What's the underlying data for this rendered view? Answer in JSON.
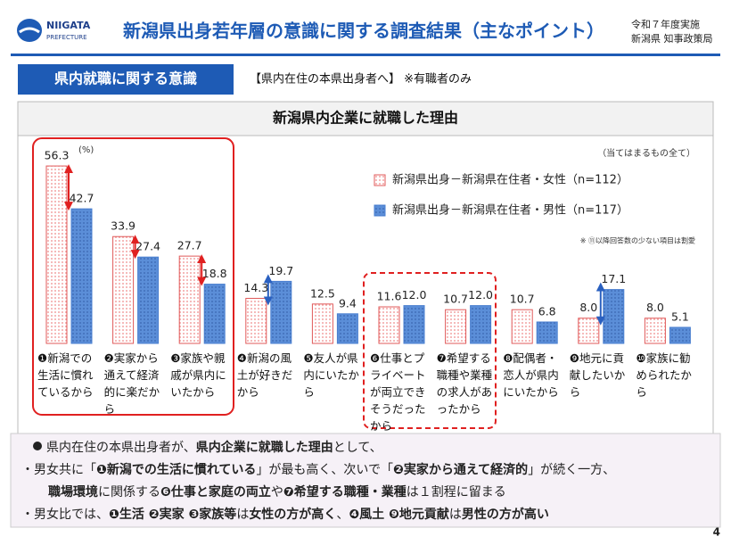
{
  "header": {
    "logo_line1": "NIIGATA",
    "logo_line2": "PREFECTURE",
    "title": "新潟県出身若年層の意識に関する調査結果（主なポイント）",
    "date": "令和７年度実施",
    "dept": "新潟県 知事政策局"
  },
  "section": {
    "label": "県内就職に関する意識",
    "subtitle": "【県内在住の本県出身者へ】 ※有職者のみ"
  },
  "chart_data": {
    "type": "bar",
    "title": "新潟県内企業に就職した理由",
    "unit": "(%)",
    "note": "（当てはまるもの全て）",
    "footnote": "※ ⑪以降回答数の少ない項目は割愛",
    "categories": [
      "❶新潟での生活に慣れているから",
      "❷実家から通えて経済的に楽だから",
      "❸家族や親戚が県内にいたから",
      "❹新潟の風土が好きだから",
      "❺友人が県内にいたから",
      "❻仕事とプライベートが両立できそうだったから",
      "❼希望する職種や業種の求人があったから",
      "❽配偶者・恋人が県内にいたから",
      "❾地元に貢献したいから",
      "❿家族に勧められたから"
    ],
    "series": [
      {
        "name": "新潟県出身－新潟県在住者・女性（n=112）",
        "color": "#e05a5a",
        "values": [
          56.3,
          33.9,
          27.7,
          14.3,
          12.5,
          11.6,
          10.7,
          10.7,
          8.0,
          8.0
        ],
        "value_labels": [
          "56.3",
          "33.9",
          "27.7",
          "14.3",
          "12.5",
          "11.6",
          "10.7",
          "10.7",
          "8.0",
          "8.0"
        ]
      },
      {
        "name": "新潟県出身－新潟県在住者・男性（n=117）",
        "color": "#4a7fd0",
        "values": [
          42.7,
          27.4,
          18.8,
          19.7,
          9.4,
          12.0,
          12.0,
          6.8,
          17.1,
          5.1
        ],
        "value_labels": [
          "42.7",
          "27.4",
          "18.8",
          "19.7",
          "9.4",
          "12.0",
          "12.0",
          "6.8",
          "17.1",
          "5.1"
        ]
      }
    ],
    "ylim": [
      0,
      60
    ]
  },
  "summary": {
    "lines": [
      [
        {
          "text": "県内在住の本県出身者が、"
        },
        {
          "text": "県内企業に就職した理由",
          "bold": true
        },
        {
          "text": "として、"
        }
      ],
      [
        {
          "text": "・男女共に「"
        },
        {
          "text": "❶新潟での生活に慣れている",
          "bold": true
        },
        {
          "text": "」が最も高く、次いで「"
        },
        {
          "text": "❷実家から通えて経済的",
          "bold": true
        },
        {
          "text": "」が続く一方、"
        }
      ],
      [
        {
          "text": "職場環境",
          "bold": true
        },
        {
          "text": "に関係する"
        },
        {
          "text": "❻仕事と家庭の両立",
          "bold": true
        },
        {
          "text": "や"
        },
        {
          "text": "❼希望する職種・業種",
          "bold": true
        },
        {
          "text": "は１割程に留まる"
        }
      ],
      [
        {
          "text": "・男女比では、"
        },
        {
          "text": "❶生活 ❷実家 ❸家族等",
          "bold": true
        },
        {
          "text": "は"
        },
        {
          "text": "女性の方が高く",
          "bold": true
        },
        {
          "text": "、"
        },
        {
          "text": "❹風土 ❾地元貢献",
          "bold": true
        },
        {
          "text": "は"
        },
        {
          "text": "男性の方が高い",
          "bold": true
        }
      ]
    ]
  },
  "page_number": "4"
}
